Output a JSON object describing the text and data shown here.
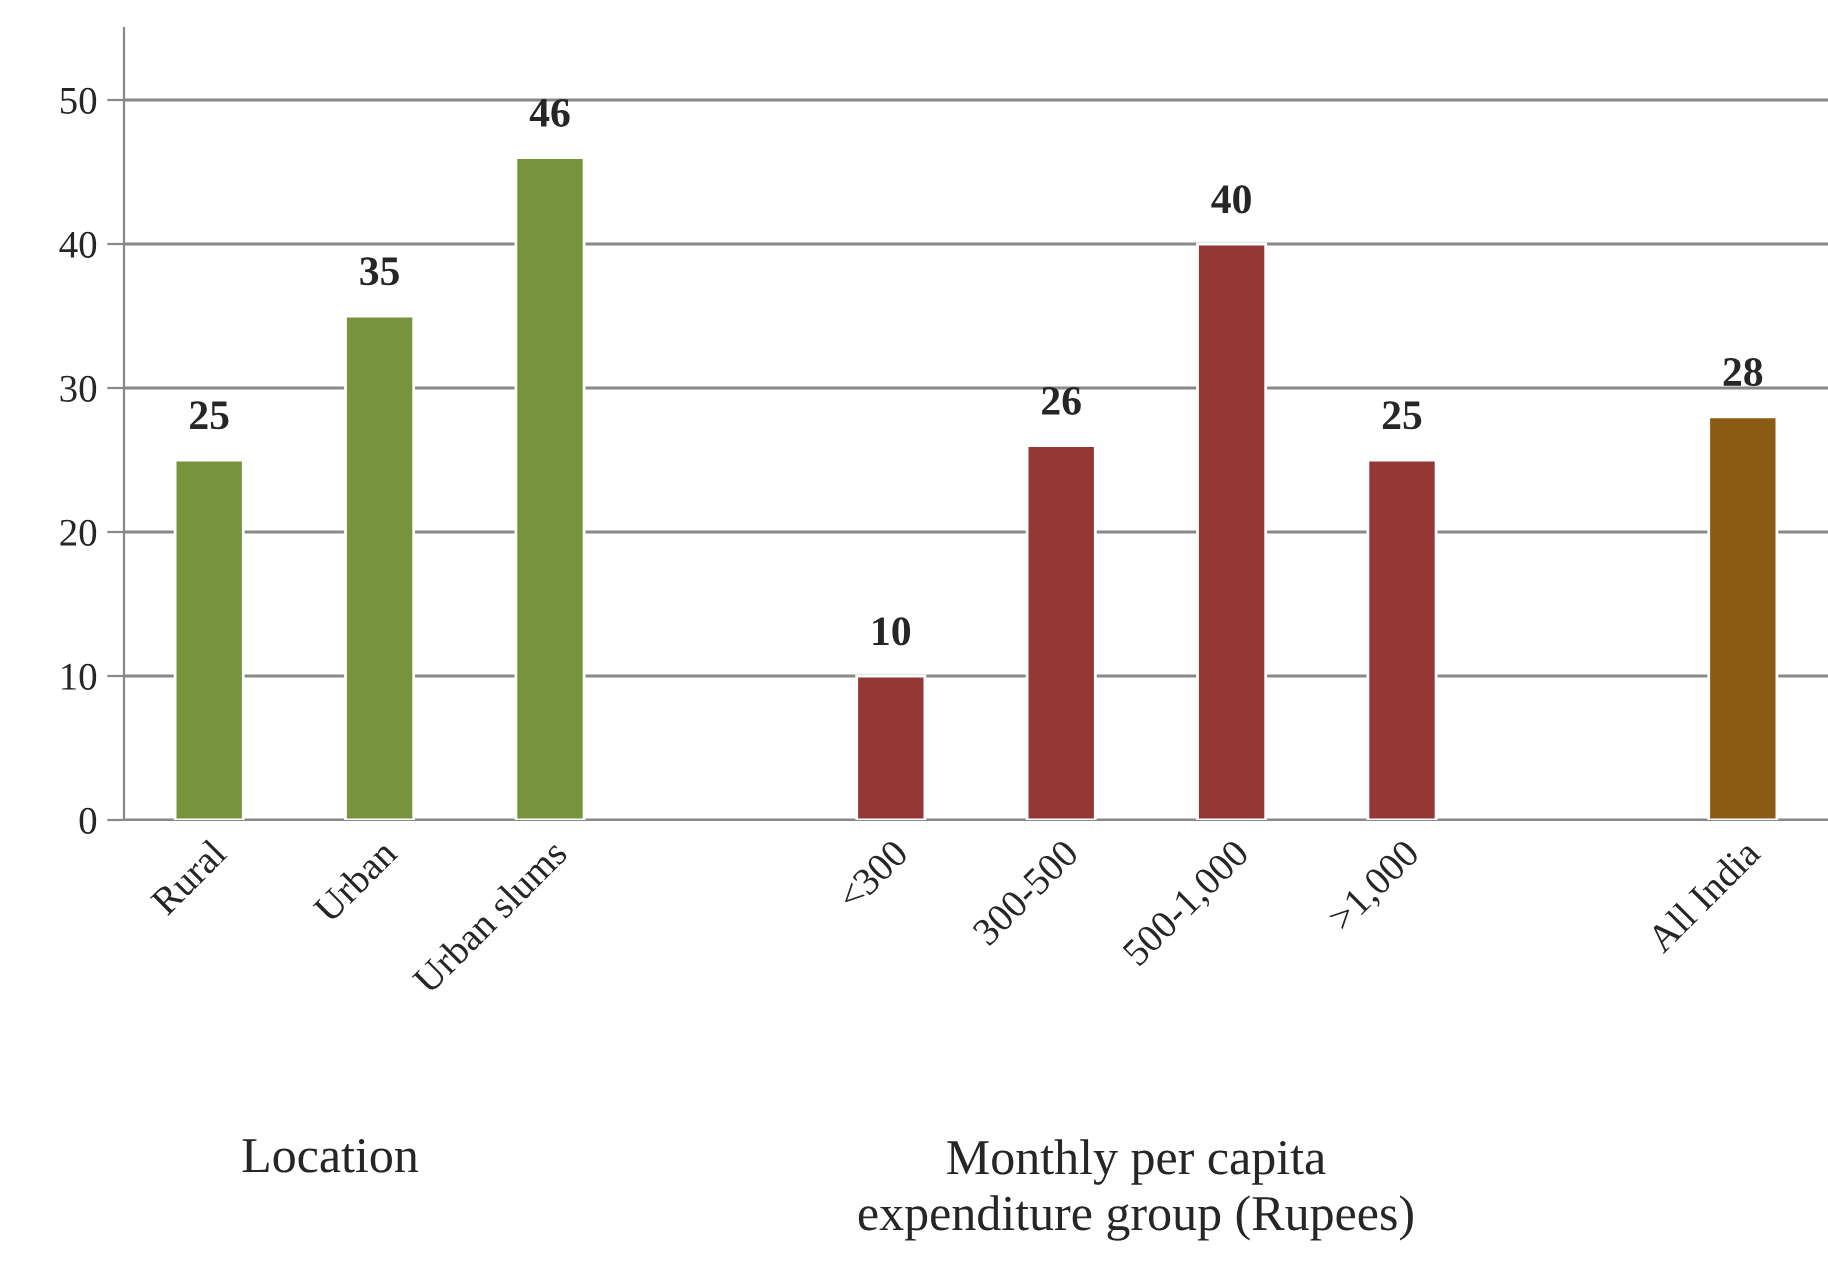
{
  "chart_data": {
    "type": "bar",
    "categories": [
      "Rural",
      "Urban",
      "Urban slums",
      null,
      "<300",
      "300-500",
      "500-1,000",
      ">1,000",
      null,
      "All India"
    ],
    "values": [
      25,
      35,
      46,
      null,
      10,
      26,
      40,
      25,
      null,
      28
    ],
    "colors": [
      "#77933c",
      "#77933c",
      "#77933c",
      null,
      "#953735",
      "#953735",
      "#953735",
      "#953735",
      null,
      "#8b5a14"
    ],
    "data_labels": true,
    "ylim": [
      0,
      55
    ],
    "yticks": [
      0,
      10,
      20,
      30,
      40,
      50
    ],
    "grid": "y",
    "annotations": [
      "Location",
      "Monthly per capita\nexpenditure group (Rupees)"
    ]
  }
}
